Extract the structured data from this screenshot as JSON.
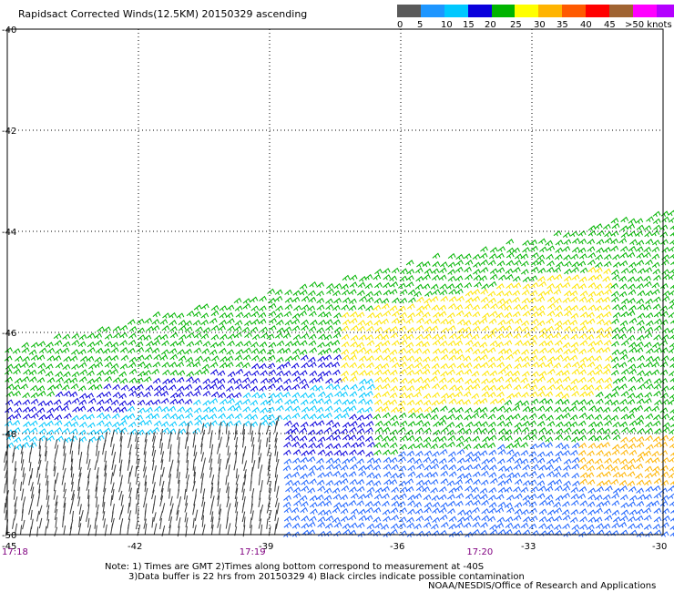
{
  "title": "Rapidsact Corrected Winds(12.5KM) 20150329 ascending",
  "legend": {
    "colors": [
      "#5a5a5a",
      "#1e96ff",
      "#00c8ff",
      "#0a00dc",
      "#00b400",
      "#ffff00",
      "#ffb400",
      "#ff5a00",
      "#ff0000",
      "#a06432",
      "#ff00ff",
      "#b400ff",
      "#6400b4"
    ],
    "labels": [
      "0",
      "5",
      "10",
      "15",
      "20",
      "25",
      "30",
      "35",
      "40",
      "45",
      ">50 knots"
    ]
  },
  "axes": {
    "lat_labels": [
      "-40",
      "-42",
      "-44",
      "-46",
      "-48",
      "-50"
    ],
    "lon_labels": [
      "-45",
      "-42",
      "-39",
      "-36",
      "-33",
      "-30"
    ],
    "time_labels": [
      "17:18",
      "17:19",
      "17:20"
    ],
    "time_color": "#800080"
  },
  "notes": {
    "line1": "Note: 1) Times are GMT 2)Times along bottom correspond to measurement at -40S",
    "line2": "3)Data buffer is 22 hrs from 20150329 4) Black circles indicate possible contamination"
  },
  "credit": "NOAA/NESDIS/Office of Research and Applications"
}
